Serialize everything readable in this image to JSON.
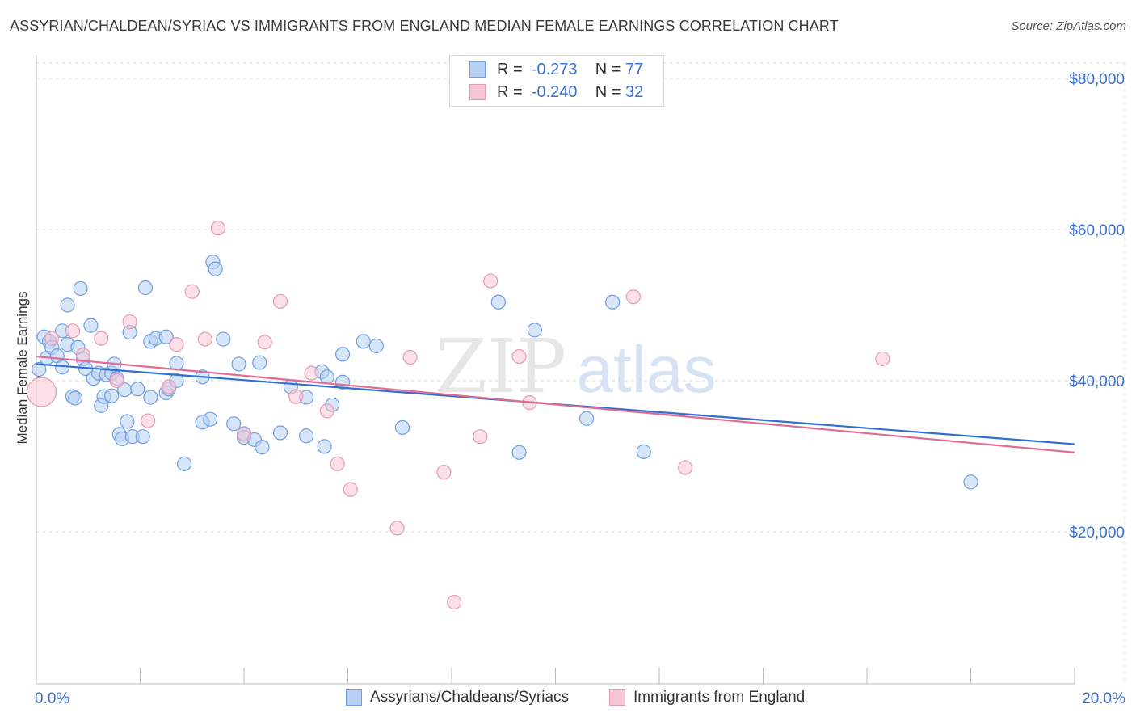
{
  "chart_data": {
    "type": "scatter",
    "title": "ASSYRIAN/CHALDEAN/SYRIAC VS IMMIGRANTS FROM ENGLAND MEDIAN FEMALE EARNINGS CORRELATION CHART",
    "source": "Source: ZipAtlas.com",
    "ylabel": "Median Female Earnings",
    "xlabel": "",
    "xlim": [
      0,
      20
    ],
    "ylim": [
      0,
      82000
    ],
    "x_tick_labels": {
      "min": "0.0%",
      "max": "20.0%"
    },
    "y_ticks": [
      {
        "value": 20000,
        "label": "$20,000"
      },
      {
        "value": 40000,
        "label": "$40,000"
      },
      {
        "value": 60000,
        "label": "$60,000"
      },
      {
        "value": 80000,
        "label": "$80,000"
      }
    ],
    "legend": {
      "rows": [
        {
          "r_label": "R =",
          "r_value": "-0.273",
          "n_label": "N =",
          "n_value": "77"
        },
        {
          "r_label": "R =",
          "r_value": "-0.240",
          "n_label": "N =",
          "n_value": "32"
        }
      ]
    },
    "series": [
      {
        "name": "Assyrians/Chaldeans/Syriacs",
        "color": "#6f9fe0",
        "fill": "#b7d0f3",
        "line_color": "#2f6fcf",
        "trend": {
          "x0": 0,
          "y0": 42200,
          "x1": 20,
          "y1": 31600
        },
        "points": [
          [
            0.05,
            41500
          ],
          [
            0.15,
            45800
          ],
          [
            0.2,
            43000
          ],
          [
            0.25,
            45200
          ],
          [
            0.3,
            44400
          ],
          [
            0.4,
            43300
          ],
          [
            0.5,
            41800
          ],
          [
            0.5,
            46600
          ],
          [
            0.6,
            50000
          ],
          [
            0.6,
            44800
          ],
          [
            0.7,
            37900
          ],
          [
            0.75,
            37700
          ],
          [
            0.8,
            44400
          ],
          [
            0.85,
            52200
          ],
          [
            0.9,
            42900
          ],
          [
            0.95,
            41600
          ],
          [
            1.05,
            47300
          ],
          [
            1.1,
            40300
          ],
          [
            1.2,
            41000
          ],
          [
            1.25,
            36700
          ],
          [
            1.3,
            37900
          ],
          [
            1.35,
            40800
          ],
          [
            1.45,
            41000
          ],
          [
            1.45,
            38000
          ],
          [
            1.5,
            42200
          ],
          [
            1.55,
            40300
          ],
          [
            1.6,
            32900
          ],
          [
            1.65,
            32300
          ],
          [
            1.7,
            38800
          ],
          [
            1.75,
            34600
          ],
          [
            1.85,
            32600
          ],
          [
            1.8,
            46400
          ],
          [
            1.95,
            38900
          ],
          [
            2.05,
            32600
          ],
          [
            2.1,
            52300
          ],
          [
            2.2,
            45200
          ],
          [
            2.2,
            37800
          ],
          [
            2.3,
            45600
          ],
          [
            2.5,
            38400
          ],
          [
            2.5,
            45800
          ],
          [
            2.55,
            38900
          ],
          [
            2.7,
            42300
          ],
          [
            2.7,
            40000
          ],
          [
            2.85,
            29000
          ],
          [
            3.2,
            40500
          ],
          [
            3.2,
            34500
          ],
          [
            3.35,
            34900
          ],
          [
            3.4,
            55700
          ],
          [
            3.45,
            54800
          ],
          [
            3.6,
            45500
          ],
          [
            3.8,
            34300
          ],
          [
            3.9,
            42200
          ],
          [
            4.0,
            33000
          ],
          [
            4.0,
            32500
          ],
          [
            4.2,
            32200
          ],
          [
            4.3,
            42400
          ],
          [
            4.35,
            31200
          ],
          [
            4.7,
            33100
          ],
          [
            4.9,
            39200
          ],
          [
            5.2,
            37800
          ],
          [
            5.2,
            32700
          ],
          [
            5.5,
            41200
          ],
          [
            5.55,
            31300
          ],
          [
            5.6,
            40500
          ],
          [
            5.7,
            36800
          ],
          [
            5.9,
            39800
          ],
          [
            5.9,
            43500
          ],
          [
            6.3,
            45200
          ],
          [
            6.55,
            44600
          ],
          [
            7.05,
            33800
          ],
          [
            8.9,
            50400
          ],
          [
            9.3,
            30500
          ],
          [
            9.6,
            46700
          ],
          [
            10.6,
            35000
          ],
          [
            11.1,
            50400
          ],
          [
            11.7,
            30600
          ],
          [
            18.0,
            26600
          ]
        ]
      },
      {
        "name": "Immigrants from England",
        "color": "#e69ab3",
        "fill": "#f7c6d4",
        "line_color": "#e06b94",
        "trend": {
          "x0": 0,
          "y0": 43200,
          "x1": 20,
          "y1": 30500
        },
        "points": [
          [
            0.1,
            38500,
            "big"
          ],
          [
            0.3,
            45600
          ],
          [
            0.7,
            46600
          ],
          [
            0.9,
            43400
          ],
          [
            1.25,
            45600
          ],
          [
            1.55,
            40000
          ],
          [
            1.8,
            47800
          ],
          [
            2.15,
            34700
          ],
          [
            2.55,
            39200
          ],
          [
            2.7,
            44800
          ],
          [
            3.0,
            51800
          ],
          [
            3.25,
            45500
          ],
          [
            3.5,
            60200
          ],
          [
            4.0,
            32900
          ],
          [
            4.4,
            45100
          ],
          [
            4.7,
            50500
          ],
          [
            5.0,
            37900
          ],
          [
            5.3,
            41000
          ],
          [
            5.6,
            36000
          ],
          [
            5.8,
            29000
          ],
          [
            6.05,
            25600
          ],
          [
            6.95,
            20500
          ],
          [
            7.2,
            43100
          ],
          [
            7.85,
            27900
          ],
          [
            8.05,
            10700
          ],
          [
            8.55,
            32600
          ],
          [
            8.75,
            53200
          ],
          [
            9.3,
            43200
          ],
          [
            9.5,
            37100
          ],
          [
            11.5,
            51100
          ],
          [
            12.5,
            28500
          ],
          [
            16.3,
            42900
          ]
        ]
      }
    ]
  }
}
